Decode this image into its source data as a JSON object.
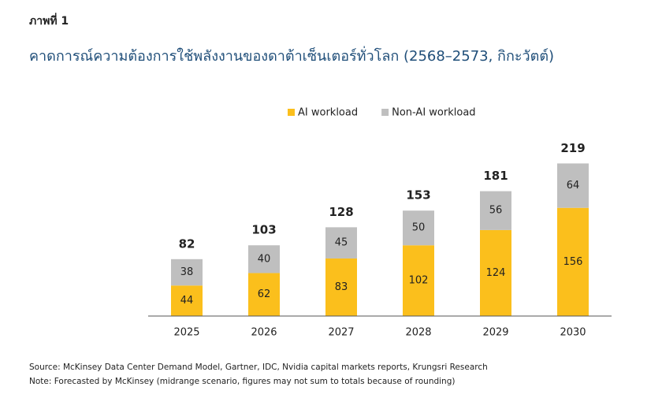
{
  "chart_data": {
    "type": "stacked_bar",
    "figure_label": "ภาพที่ 1",
    "title": "คาดการณ์ความต้องการใช้พลังงานของดาต้าเซ็นเตอร์ทั่วโลก (2568–2573, กิกะวัตต์)",
    "categories": [
      "2025",
      "2026",
      "2027",
      "2028",
      "2029",
      "2030"
    ],
    "series": [
      {
        "name": "AI workload",
        "color": "#fbbf1c",
        "values": [
          44,
          62,
          83,
          102,
          124,
          156
        ]
      },
      {
        "name": "Non-AI workload",
        "color": "#bfbfbf",
        "values": [
          38,
          40,
          45,
          50,
          56,
          64
        ]
      }
    ],
    "totals": [
      82,
      103,
      128,
      153,
      181,
      219
    ],
    "ylim": [
      0,
      250
    ],
    "source": "Source: McKinsey Data Center Demand Model, Gartner, IDC, Nvidia capital markets reports, Krungsri Research",
    "note": "Note: Forecasted by McKinsey (midrange scenario, figures may not sum to totals because of rounding)"
  }
}
